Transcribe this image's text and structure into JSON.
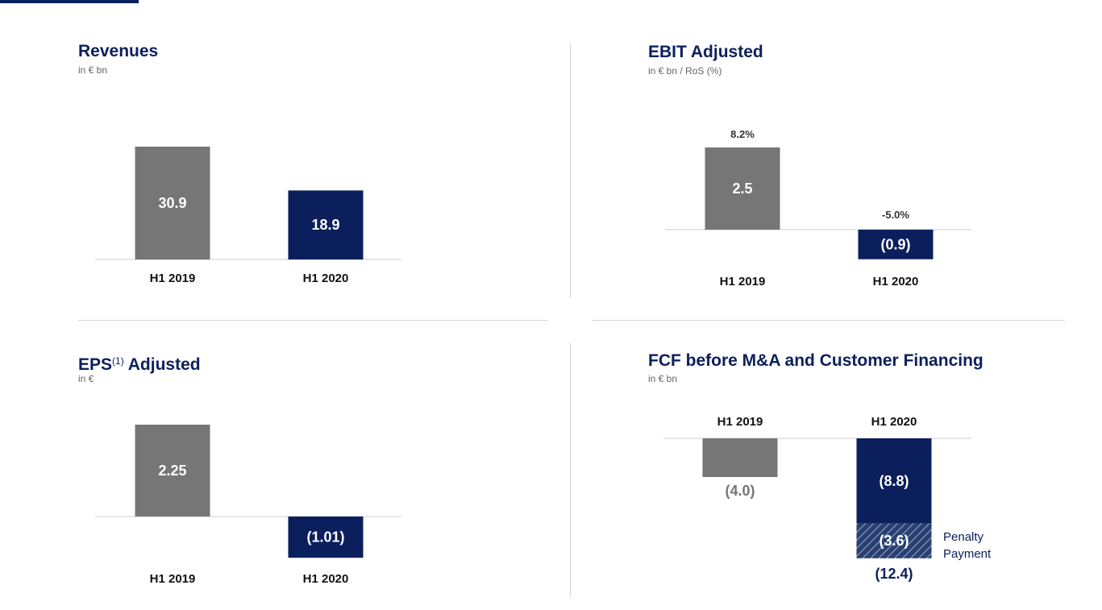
{
  "colors": {
    "navy": "#0b1f5c",
    "gray": "#767676",
    "hatch_bg": "#2a3f70"
  },
  "revenues": {
    "title": "Revenues",
    "subtitle": "in € bn"
  },
  "ebit": {
    "title": "EBIT Adjusted",
    "subtitle": "in € bn / RoS (%)"
  },
  "eps": {
    "title_main": "EPS",
    "title_sup": "(1)",
    "title_rest": " Adjusted",
    "subtitle": "in €"
  },
  "fcf": {
    "title": "FCF before M&A and Customer Financing",
    "subtitle": "in € bn"
  },
  "chart_data": [
    {
      "type": "bar",
      "categories": [
        "H1 2019",
        "H1 2020"
      ],
      "values": [
        30.9,
        18.9
      ],
      "labels": [
        "30.9",
        "18.9"
      ],
      "colors": [
        "gray",
        "navy"
      ]
    },
    {
      "type": "bar",
      "categories": [
        "H1 2019",
        "H1 2020"
      ],
      "values": [
        2.5,
        -0.9
      ],
      "labels": [
        "2.5",
        "(0.9)"
      ],
      "ros_labels": [
        "8.2%",
        "-5.0%"
      ],
      "colors": [
        "gray",
        "navy"
      ]
    },
    {
      "type": "bar",
      "categories": [
        "H1 2019",
        "H1 2020"
      ],
      "values": [
        2.25,
        -1.01
      ],
      "labels": [
        "2.25",
        "(1.01)"
      ],
      "colors": [
        "gray",
        "navy"
      ]
    },
    {
      "type": "bar",
      "stacked": true,
      "categories": [
        "H1 2019",
        "H1 2020"
      ],
      "series": [
        {
          "values": [
            -4.0,
            -8.8
          ],
          "labels": [
            "(4.0)",
            "(8.8)"
          ]
        },
        {
          "name": "Penalty Payment",
          "values": [
            0,
            -3.6
          ],
          "labels": [
            "",
            "(3.6)"
          ]
        }
      ],
      "totals": [
        -4.0,
        -12.4
      ],
      "total_labels": [
        "",
        "(12.4)"
      ],
      "annotation": [
        "Penalty",
        "Payment"
      ]
    }
  ]
}
